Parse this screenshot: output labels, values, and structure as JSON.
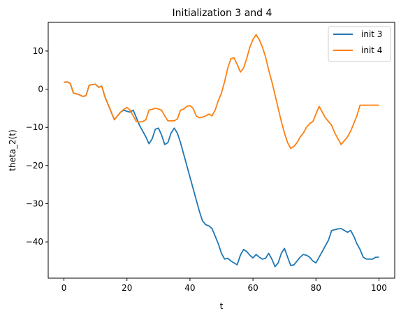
{
  "chart_data": {
    "type": "line",
    "title": "Initialization 3 and 4",
    "xlabel": "t",
    "ylabel": "theta_2(t)",
    "xlim": [
      -5,
      105
    ],
    "ylim": [
      -49.5,
      17.5
    ],
    "xticks": [
      0,
      20,
      40,
      60,
      80,
      100
    ],
    "yticks": [
      -40,
      -30,
      -20,
      -10,
      0,
      10
    ],
    "grid": false,
    "legend_position": "top-right",
    "series": [
      {
        "name": "init 3",
        "color": "#1f77b4",
        "x": [
          0,
          1,
          2,
          3,
          4,
          5,
          6,
          7,
          8,
          9,
          10,
          11,
          12,
          13,
          14,
          15,
          16,
          17,
          18,
          19,
          20,
          21,
          22,
          23,
          24,
          25,
          26,
          27,
          28,
          29,
          30,
          31,
          32,
          33,
          34,
          35,
          36,
          37,
          38,
          39,
          40,
          41,
          42,
          43,
          44,
          45,
          46,
          47,
          48,
          49,
          50,
          51,
          52,
          53,
          54,
          55,
          56,
          57,
          58,
          59,
          60,
          61,
          62,
          63,
          64,
          65,
          66,
          67,
          68,
          69,
          70,
          71,
          72,
          73,
          74,
          75,
          76,
          77,
          78,
          79,
          80,
          81,
          82,
          83,
          84,
          85,
          86,
          87,
          88,
          89,
          90,
          91,
          92,
          93,
          94,
          95,
          96,
          97,
          98,
          99,
          100
        ],
        "y": [
          1.8,
          1.9,
          1.5,
          -1.0,
          -1.2,
          -1.5,
          -1.9,
          -1.7,
          1.0,
          1.2,
          1.3,
          0.5,
          0.8,
          -2.0,
          -4.0,
          -6.0,
          -8.0,
          -7.0,
          -6.0,
          -5.5,
          -5.8,
          -6.0,
          -5.5,
          -7.5,
          -9.5,
          -11.0,
          -12.5,
          -14.3,
          -13.0,
          -10.5,
          -10.2,
          -12.0,
          -14.5,
          -14.0,
          -11.5,
          -10.2,
          -11.5,
          -14.0,
          -17.0,
          -20.0,
          -23.0,
          -26.0,
          -29.0,
          -32.0,
          -34.5,
          -35.5,
          -35.8,
          -36.5,
          -38.5,
          -40.5,
          -43.0,
          -44.5,
          -44.3,
          -45.0,
          -45.5,
          -46.0,
          -43.5,
          -42.0,
          -42.5,
          -43.5,
          -44.2,
          -43.3,
          -44.0,
          -44.5,
          -44.3,
          -43.0,
          -44.5,
          -46.5,
          -45.5,
          -43.0,
          -41.7,
          -44.0,
          -46.2,
          -46.0,
          -45.0,
          -44.0,
          -43.3,
          -43.5,
          -44.0,
          -45.0,
          -45.5,
          -44.0,
          -42.5,
          -41.0,
          -39.5,
          -37.0,
          -36.8,
          -36.6,
          -36.5,
          -37.0,
          -37.5,
          -37.0,
          -38.5,
          -40.5,
          -42.0,
          -44.0,
          -44.5,
          -44.5,
          -44.5,
          -44.0,
          -44.0
        ],
        "x_fixed": [
          0,
          1,
          2,
          3,
          4,
          5,
          6,
          7,
          8,
          9,
          10,
          11,
          12,
          13,
          14,
          15,
          16,
          17,
          18,
          19,
          20,
          21,
          22,
          23,
          24,
          25,
          26,
          27,
          28,
          29,
          30,
          31,
          32,
          33,
          34,
          35,
          36,
          37,
          38,
          39,
          40,
          41,
          42,
          43,
          44,
          45,
          46,
          47,
          48,
          49,
          50,
          51,
          52,
          53,
          54,
          55,
          56,
          57,
          58,
          59,
          60,
          61,
          62,
          63,
          64,
          65,
          66,
          67,
          68,
          69,
          70,
          71,
          72,
          73,
          74,
          75,
          76,
          77,
          78,
          79,
          80,
          81,
          82,
          83,
          84,
          85,
          86,
          87,
          88,
          89,
          90,
          91,
          92,
          93,
          94,
          95,
          96,
          97,
          98,
          99,
          100
        ]
      },
      {
        "name": "init 4",
        "color": "#ff7f0e",
        "x": [
          0,
          1,
          2,
          3,
          4,
          5,
          6,
          7,
          8,
          9,
          10,
          11,
          12,
          13,
          14,
          15,
          16,
          17,
          18,
          19,
          20,
          21,
          22,
          23,
          24,
          25,
          26,
          27,
          28,
          29,
          30,
          31,
          32,
          33,
          34,
          35,
          36,
          37,
          38,
          39,
          40,
          41,
          42,
          43,
          44,
          45,
          46,
          47,
          48,
          49,
          50,
          51,
          52,
          53,
          54,
          55,
          56,
          57,
          58,
          59,
          60,
          61,
          62,
          63,
          64,
          65,
          66,
          67,
          68,
          69,
          70,
          71,
          72,
          73,
          74,
          75,
          76,
          77,
          78,
          79,
          80,
          81,
          82,
          83,
          84,
          85,
          86,
          87,
          88,
          89,
          90,
          91,
          92,
          93,
          94,
          95,
          96,
          97,
          98,
          99,
          100
        ],
        "y": [
          1.8,
          1.9,
          1.5,
          -1.0,
          -1.2,
          -1.5,
          -1.9,
          -1.7,
          1.0,
          1.2,
          1.3,
          0.5,
          0.8,
          -2.0,
          -4.0,
          -6.0,
          -8.0,
          -7.0,
          -6.0,
          -5.3,
          -4.8,
          -5.5,
          -7.0,
          -8.5,
          -8.6,
          -8.5,
          -8.0,
          -5.5,
          -5.3,
          -5.0,
          -5.2,
          -5.5,
          -7.0,
          -8.3,
          -8.3,
          -8.3,
          -7.8,
          -5.5,
          -5.2,
          -4.5,
          -4.3,
          -5.0,
          -7.0,
          -7.5,
          -7.3,
          -7.0,
          -6.5,
          -7.0,
          -5.5,
          -3.0,
          -1.0,
          2.0,
          5.5,
          8.0,
          8.2,
          6.5,
          4.5,
          5.5,
          8.0,
          11.0,
          13.0,
          14.3,
          13.0,
          11.0,
          8.5,
          5.0,
          2.0,
          -1.5,
          -5.0,
          -8.5,
          -11.5,
          -14.0,
          -15.5,
          -15.0,
          -14.0,
          -12.5,
          -11.5,
          -10.0,
          -9.0,
          -8.5,
          -6.5,
          -4.5,
          -6.0,
          -7.5,
          -8.5,
          -9.5,
          -11.5,
          -13.0,
          -14.5,
          -13.5,
          -12.5,
          -11.0,
          -9.0,
          -7.0,
          -4.2,
          -4.2,
          -4.2,
          -4.2,
          -4.2,
          -4.2,
          -4.2
        ]
      }
    ],
    "legend": [
      "init 3",
      "init 4"
    ]
  }
}
